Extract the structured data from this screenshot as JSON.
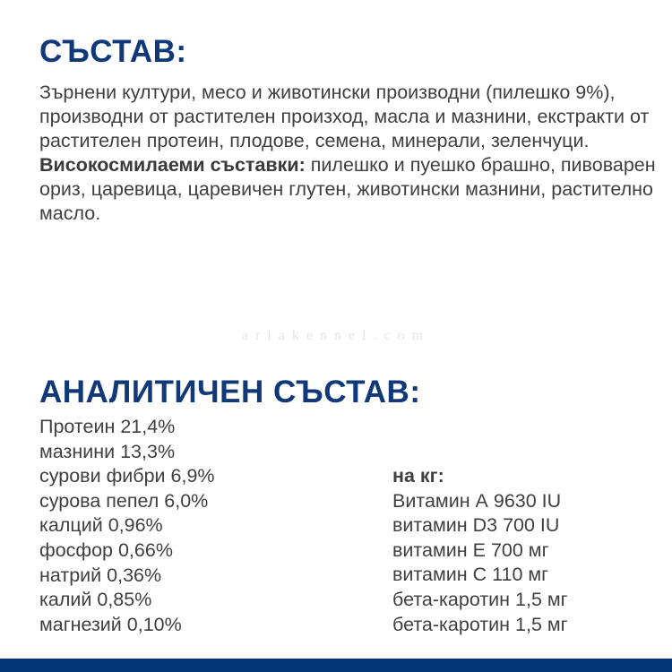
{
  "composition": {
    "title": "СЪСТАВ:",
    "text": "Зърнени култури, месо и животински производни (пилешко 9%), производни от растителен произход, масла и мазнини, екстракти от растителен протеин, плодове, семена, минерали, зеленчуци.",
    "highlight_label": "Високосмилаеми съставки:",
    "highlight_text": " пилешко и пуешко брашно, пивоварен ориз, царевица, царевичен глутен, животински мазнини, растително масло."
  },
  "watermark": "ariakennel.com",
  "analytical": {
    "title": "АНАЛИТИЧЕН СЪСТАВ:",
    "items": [
      "Протеин 21,4%",
      "мазнини 13,3%",
      "сурови фибри 6,9%",
      "сурова пепел 6,0%",
      "калций 0,96%",
      "фосфор 0,66%",
      "натрий 0,36%",
      "калий 0,85%",
      "магнезий 0,10%"
    ],
    "per_kg_label": "на кг:",
    "per_kg": [
      "Витамин А 9630 IU",
      "витамин D3 700 IU",
      "витамин Е 700 мг",
      "витамин С 110 мг",
      "бета-каротин 1,5 мг",
      "бета-каротин 1,5 мг"
    ]
  },
  "colors": {
    "title": "#11397a",
    "band": "#023677",
    "text": "#3f3f3f"
  }
}
